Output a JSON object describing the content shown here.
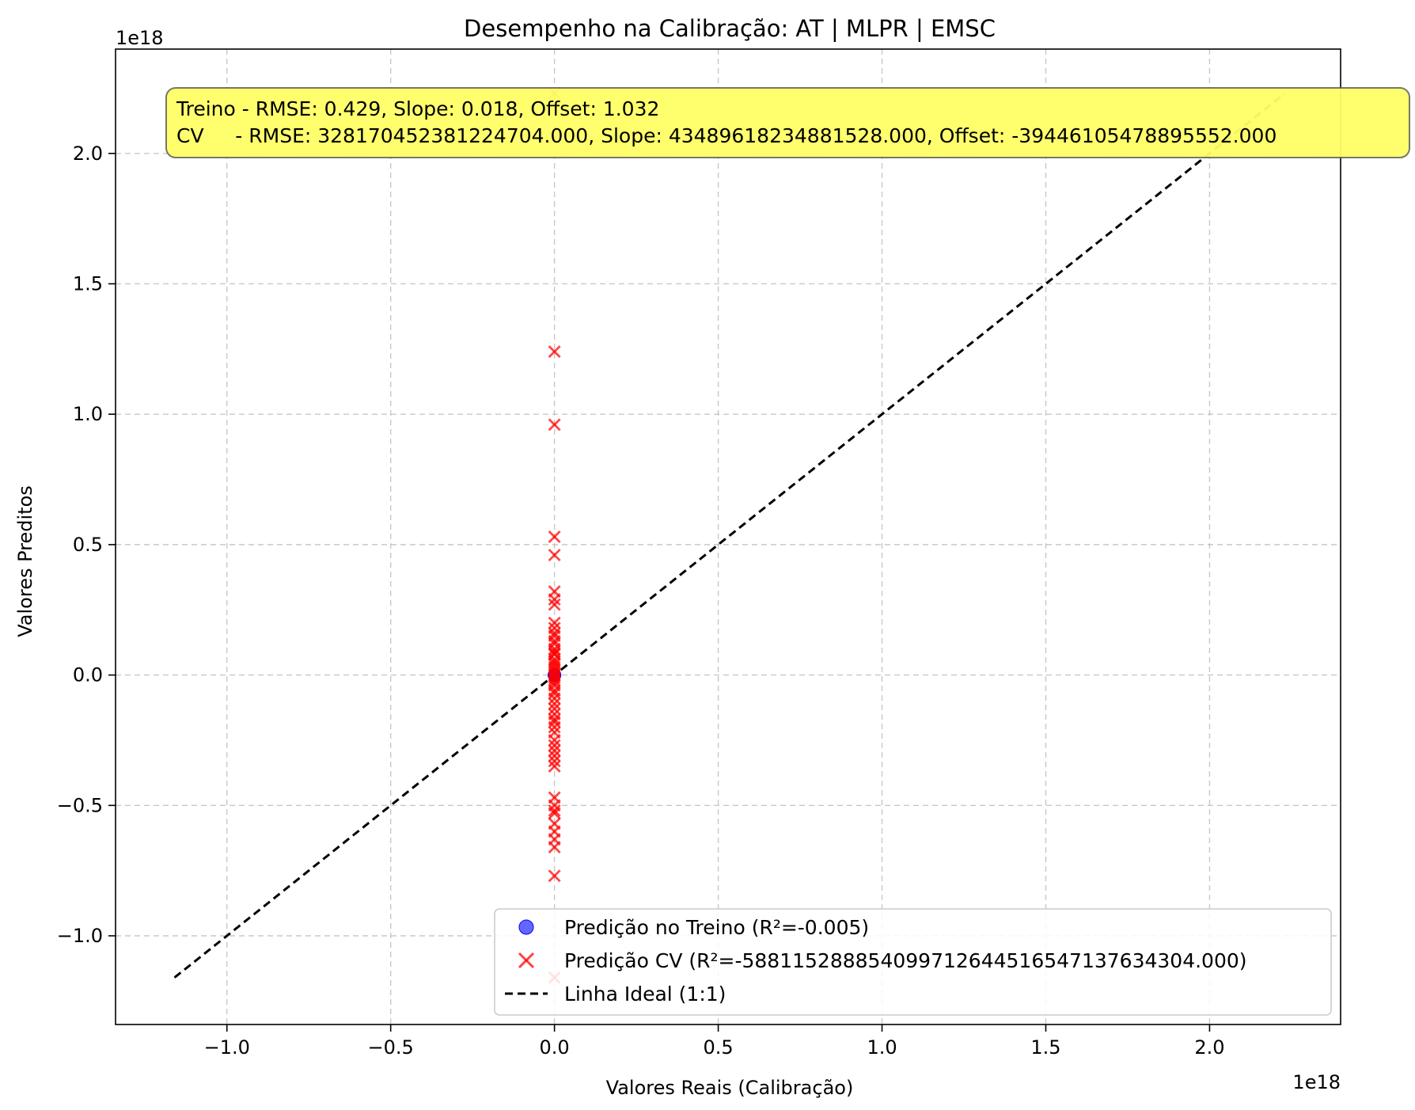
{
  "chart_data": {
    "type": "scatter",
    "title": "Desempenho na Calibração: AT | MLPR | EMSC",
    "xlabel": "Valores Reais (Calibração)",
    "ylabel": "Valores Preditos",
    "x_offset_text": "1e18",
    "y_offset_text": "1e18",
    "xlim": [
      -1.34,
      2.4
    ],
    "ylim": [
      -1.34,
      2.4
    ],
    "x_ticks": [
      -1.0,
      -0.5,
      0.0,
      0.5,
      1.0,
      1.5,
      2.0
    ],
    "x_tick_labels": [
      "−1.0",
      "−0.5",
      "0.0",
      "0.5",
      "1.0",
      "1.5",
      "2.0"
    ],
    "y_ticks": [
      -1.0,
      -0.5,
      0.0,
      0.5,
      1.0,
      1.5,
      2.0
    ],
    "y_tick_labels": [
      "−1.0",
      "−0.5",
      "0.0",
      "0.5",
      "1.0",
      "1.5",
      "2.0"
    ],
    "grid": true,
    "legend_position": "lower right",
    "annotation": {
      "line1": "Treino - RMSE: 0.429, Slope: 0.018, Offset: 1.032",
      "line2": "CV     - RMSE: 328170452381224704.000, Slope: 434896182348815​28.000, Offset: -394461054788955​52.000",
      "background": "#ffff66"
    },
    "series": [
      {
        "name": "Predição no Treino (R²=-0.005)",
        "marker": "circle",
        "color": "#0000ff",
        "x": [
          0,
          0,
          0
        ],
        "y": [
          0,
          0,
          0
        ]
      },
      {
        "name": "Predição CV (R²=-588115288854099712644516547137634304.000)",
        "marker": "x",
        "color": "#ff0000",
        "x": [
          0,
          0,
          0,
          0,
          0,
          0,
          0,
          0,
          0,
          0,
          0,
          0,
          0,
          0,
          0,
          0,
          0,
          0,
          0,
          0,
          0,
          0,
          0,
          0,
          0,
          0,
          0,
          0,
          0,
          0,
          0,
          0,
          0,
          0,
          0,
          0,
          0,
          0,
          0,
          0,
          0,
          0,
          0,
          0,
          0,
          0,
          0,
          0,
          0,
          0,
          0,
          0,
          0,
          0,
          0,
          0
        ],
        "y": [
          2.23,
          2.06,
          1.24,
          0.96,
          0.53,
          0.46,
          0.32,
          0.29,
          0.27,
          0.2,
          0.18,
          0.16,
          0.15,
          0.13,
          0.12,
          0.1,
          0.09,
          0.08,
          0.06,
          0.05,
          0.04,
          0.03,
          0.02,
          0.01,
          0.0,
          -0.01,
          -0.02,
          -0.03,
          -0.04,
          -0.06,
          -0.07,
          -0.09,
          -0.11,
          -0.13,
          -0.15,
          -0.17,
          -0.18,
          -0.2,
          -0.22,
          -0.25,
          -0.27,
          -0.29,
          -0.31,
          -0.33,
          -0.35,
          -0.47,
          -0.5,
          -0.52,
          -0.53,
          -0.57,
          -0.6,
          -0.63,
          -0.66,
          -0.77,
          -1.16,
          0.08
        ]
      },
      {
        "name": "Linha Ideal (1:1)",
        "marker": "dashed-line",
        "color": "#000000",
        "x": [
          -1.16,
          2.23
        ],
        "y": [
          -1.16,
          2.23
        ]
      }
    ]
  }
}
